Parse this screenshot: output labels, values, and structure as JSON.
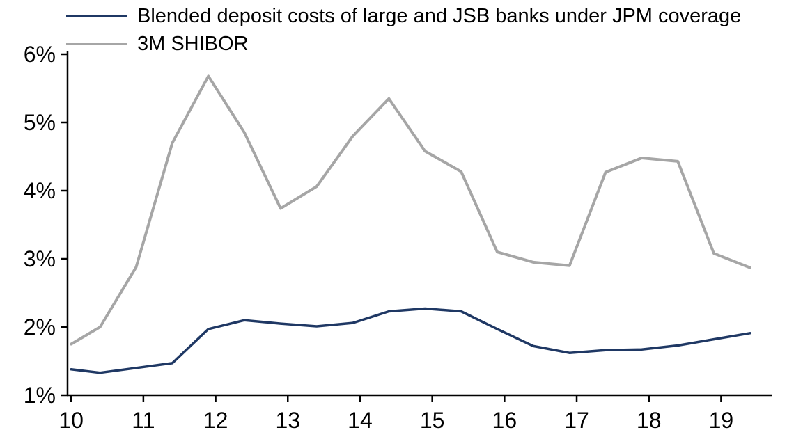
{
  "chart_data": {
    "type": "line",
    "title": "",
    "xlabel": "",
    "ylabel": "",
    "grid": false,
    "legend_position": "top-left",
    "xlim": [
      9.95,
      19.7
    ],
    "ylim": [
      1,
      6
    ],
    "x_ticks": [
      10,
      11,
      12,
      13,
      14,
      15,
      16,
      17,
      18,
      19
    ],
    "x_tick_labels": [
      "10",
      "11",
      "12",
      "13",
      "14",
      "15",
      "16",
      "17",
      "18",
      "19"
    ],
    "y_ticks": [
      1,
      2,
      3,
      4,
      5,
      6
    ],
    "y_tick_labels": [
      "1%",
      "2%",
      "3%",
      "4%",
      "5%",
      "6%"
    ],
    "x": [
      10.0,
      10.4,
      10.9,
      11.4,
      11.9,
      12.4,
      12.9,
      13.4,
      13.9,
      14.4,
      14.9,
      15.4,
      15.9,
      16.4,
      16.9,
      17.4,
      17.9,
      18.4,
      18.9,
      19.4
    ],
    "series": [
      {
        "name": "Blended deposit costs of large and JSB banks under JPM coverage",
        "color": "#1f3864",
        "line_width": 3.5,
        "values": [
          1.38,
          1.33,
          1.4,
          1.47,
          1.97,
          2.1,
          2.05,
          2.01,
          2.06,
          2.23,
          2.27,
          2.23,
          1.97,
          1.72,
          1.62,
          1.66,
          1.67,
          1.73,
          1.82,
          1.91
        ]
      },
      {
        "name": "3M SHIBOR",
        "color": "#a6a6a6",
        "line_width": 4,
        "values": [
          1.75,
          2.0,
          2.88,
          4.7,
          5.68,
          4.85,
          3.74,
          4.06,
          4.8,
          5.35,
          4.58,
          4.28,
          3.1,
          2.95,
          2.9,
          4.27,
          4.48,
          4.43,
          3.08,
          2.87
        ]
      }
    ],
    "axis_color": "#000000",
    "tick_label_color": "#000000"
  }
}
